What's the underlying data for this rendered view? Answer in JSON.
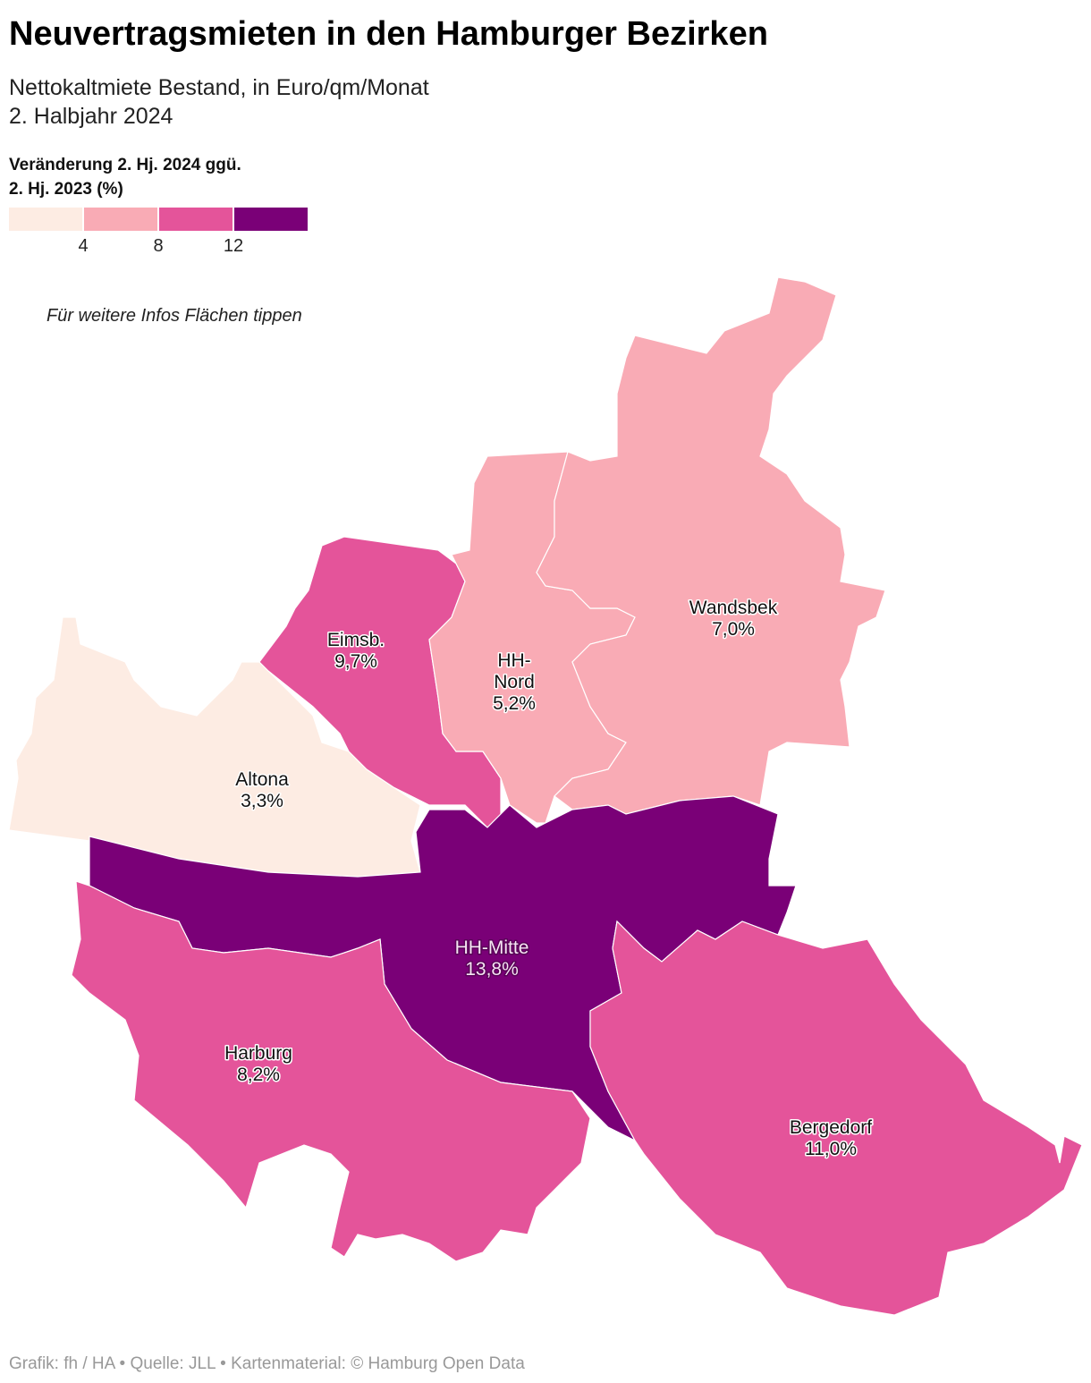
{
  "header": {
    "title": "Neuvertragsmieten in den Hamburger Bezirken",
    "subtitle": [
      "Nettokaltmiete Bestand, in Euro/qm/Monat",
      "2. Halbjahr 2024"
    ]
  },
  "legend": {
    "title": [
      "Veränderung 2. Hj. 2024 ggü.",
      "2. Hj. 2023 (%)"
    ],
    "breaks": [
      4,
      8,
      12
    ],
    "colors": [
      "#fdece3",
      "#f9abb5",
      "#e4549a",
      "#7a0077"
    ]
  },
  "hint": "Für weitere Infos Flächen tippen",
  "map": {
    "districts": [
      {
        "name": [
          "Altona"
        ],
        "value": 3.3,
        "value_label": "3,3%"
      },
      {
        "name": [
          "Eimsb."
        ],
        "value": 9.7,
        "value_label": "9,7%"
      },
      {
        "name": [
          "HH-",
          "Nord"
        ],
        "value": 5.2,
        "value_label": "5,2%"
      },
      {
        "name": [
          "Wandsbek"
        ],
        "value": 7.0,
        "value_label": "7,0%"
      },
      {
        "name": [
          "HH-Mitte"
        ],
        "value": 13.8,
        "value_label": "13,8%"
      },
      {
        "name": [
          "Harburg"
        ],
        "value": 8.2,
        "value_label": "8,2%"
      },
      {
        "name": [
          "Bergedorf"
        ],
        "value": 11.0,
        "value_label": "11,0%"
      }
    ]
  },
  "footer": "Grafik: fh / HA • Quelle: JLL • Kartenmaterial: © Hamburg Open Data"
}
